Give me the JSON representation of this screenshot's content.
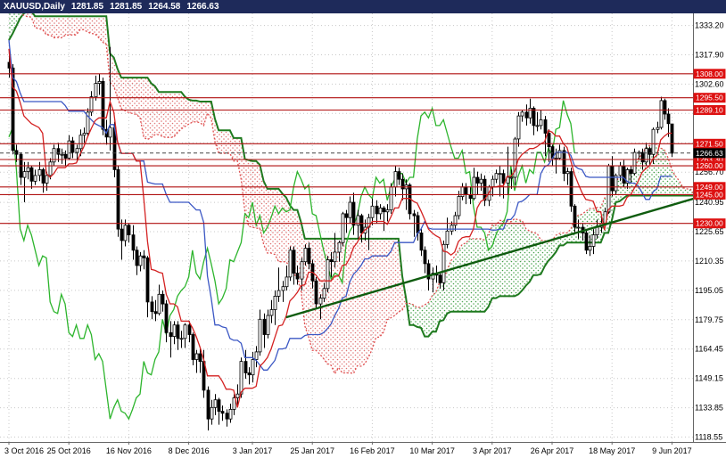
{
  "title_bar": {
    "symbol": "XAUUSD,Daily",
    "open": "1281.85",
    "high": "1281.85",
    "low": "1264.58",
    "close": "1266.63"
  },
  "chart_data": {
    "type": "candlestick",
    "title": "XAUUSD,Daily",
    "indicator": "Ichimoku Kinko Hyo",
    "last_price": {
      "value": 1266.63,
      "label": "1266.63"
    },
    "price_axis": {
      "scale_min": 1116.0,
      "scale_max": 1339.5,
      "grid_prices": [
        1333.2,
        1317.9,
        1302.6,
        1287.3,
        1272.0,
        1256.7,
        1240.95,
        1225.65,
        1210.35,
        1195.05,
        1179.75,
        1164.45,
        1149.15,
        1133.85,
        1118.55
      ],
      "tick_labels": [
        "1333.20",
        "1317.90",
        "1302.60",
        "1256.70",
        "1240.95",
        "1225.65",
        "1210.35",
        "1195.05",
        "1179.75",
        "1164.45",
        "1149.15",
        "1133.85",
        "1118.55"
      ]
    },
    "time_axis": {
      "ticks": [
        {
          "label": "3 Oct 2016",
          "index": 0
        },
        {
          "label": "25 Oct 2016",
          "index": 16
        },
        {
          "label": "16 Nov 2016",
          "index": 32
        },
        {
          "label": "8 Dec 2016",
          "index": 48
        },
        {
          "label": "3 Jan 2017",
          "index": 65
        },
        {
          "label": "25 Jan 2017",
          "index": 81
        },
        {
          "label": "16 Feb 2017",
          "index": 97
        },
        {
          "label": "10 Mar 2017",
          "index": 113
        },
        {
          "label": "3 Apr 2017",
          "index": 129
        },
        {
          "label": "26 Apr 2017",
          "index": 145
        },
        {
          "label": "18 May 2017",
          "index": 161
        },
        {
          "label": "9 Jun 2017",
          "index": 177
        }
      ]
    },
    "levels": [
      {
        "price": 1308.0,
        "label": "1308.00"
      },
      {
        "price": 1295.5,
        "label": "1295.50"
      },
      {
        "price": 1289.1,
        "label": "1289.10"
      },
      {
        "price": 1271.5,
        "label": "1271.50"
      },
      {
        "price": 1263.3,
        "label": "1263.30"
      },
      {
        "price": 1260.0,
        "label": "1260.00"
      },
      {
        "price": 1249.0,
        "label": "1249.00"
      },
      {
        "price": 1245.0,
        "label": "1245.00"
      },
      {
        "price": 1230.0,
        "label": "1230.00"
      }
    ],
    "trendline": {
      "from_index": 74,
      "from_price": 1181,
      "to_index": 183,
      "to_price": 1243
    },
    "ichimoku": {
      "tenkan_period": 9,
      "kijun_period": 26,
      "senkou_b_period": 52,
      "displacement": 26
    },
    "colors": {
      "background": "#ffffff",
      "title_bar_bg": "#1e2a5a",
      "grid": "#c8c8c8",
      "bull": "#ffffff",
      "bear": "#000000",
      "candle_outline": "#000000",
      "tenkan": "#d42222",
      "kijun": "#3b57c4",
      "chikou": "#2db52d",
      "senkou_a": "#e05050",
      "senkou_b": "#1f7a1f",
      "cloud_bull": "#44a048",
      "cloud_bear": "#e07070",
      "level_line": "#b01010",
      "level_badge": "#dd1111",
      "last_badge": "#000000",
      "axis_text": "#000000",
      "trendline": "#0f5c0f"
    },
    "pre_history_closes": [
      1278,
      1283,
      1288,
      1285,
      1292,
      1300,
      1308,
      1313,
      1318,
      1316,
      1322,
      1330,
      1336,
      1331,
      1326,
      1330,
      1334,
      1340,
      1346,
      1352,
      1358,
      1355,
      1348,
      1342,
      1336,
      1327,
      1332,
      1331,
      1323,
      1315,
      1319,
      1321,
      1326,
      1341,
      1337,
      1351,
      1353,
      1364,
      1357,
      1361,
      1366,
      1360,
      1357,
      1341,
      1336,
      1335,
      1340,
      1343,
      1348,
      1351,
      1346,
      1343,
      1339,
      1342,
      1340,
      1338,
      1324,
      1321,
      1324,
      1327,
      1323,
      1310,
      1314,
      1316,
      1311,
      1324,
      1327,
      1331,
      1336,
      1341,
      1337,
      1326,
      1322,
      1323,
      1327,
      1331,
      1326,
      1322,
      1318,
      1316
    ],
    "candles": [
      [
        1314,
        1319,
        1306,
        1311
      ],
      [
        1311,
        1313,
        1266,
        1268
      ],
      [
        1268,
        1271,
        1262,
        1266
      ],
      [
        1266,
        1267,
        1250,
        1254
      ],
      [
        1254,
        1262,
        1241,
        1257
      ],
      [
        1257,
        1262,
        1253,
        1259
      ],
      [
        1259,
        1260,
        1248,
        1252
      ],
      [
        1252,
        1258,
        1250,
        1255
      ],
      [
        1255,
        1262,
        1252,
        1258
      ],
      [
        1258,
        1259,
        1246,
        1251
      ],
      [
        1251,
        1257,
        1247,
        1255
      ],
      [
        1255,
        1264,
        1253,
        1262
      ],
      [
        1262,
        1271,
        1260,
        1269
      ],
      [
        1269,
        1272,
        1262,
        1266
      ],
      [
        1266,
        1269,
        1261,
        1266
      ],
      [
        1266,
        1268,
        1260,
        1264
      ],
      [
        1264,
        1276,
        1263,
        1273
      ],
      [
        1273,
        1275,
        1264,
        1267
      ],
      [
        1267,
        1271,
        1262,
        1269
      ],
      [
        1269,
        1279,
        1265,
        1276
      ],
      [
        1276,
        1280,
        1272,
        1277
      ],
      [
        1277,
        1290,
        1275,
        1288
      ],
      [
        1288,
        1299,
        1286,
        1296
      ],
      [
        1296,
        1307,
        1294,
        1303
      ],
      [
        1303,
        1308,
        1297,
        1304
      ],
      [
        1304,
        1306,
        1276,
        1279
      ],
      [
        1279,
        1284,
        1271,
        1275
      ],
      [
        1275,
        1322,
        1268,
        1280
      ],
      [
        1280,
        1283,
        1254,
        1258
      ],
      [
        1258,
        1260,
        1223,
        1227
      ],
      [
        1227,
        1232,
        1211,
        1221
      ],
      [
        1221,
        1232,
        1218,
        1229
      ],
      [
        1229,
        1230,
        1220,
        1224
      ],
      [
        1224,
        1229,
        1211,
        1216
      ],
      [
        1216,
        1218,
        1203,
        1208
      ],
      [
        1208,
        1215,
        1205,
        1213
      ],
      [
        1213,
        1216,
        1206,
        1212
      ],
      [
        1212,
        1213,
        1181,
        1189
      ],
      [
        1189,
        1192,
        1180,
        1184
      ],
      [
        1184,
        1190,
        1179,
        1183
      ],
      [
        1183,
        1198,
        1182,
        1193
      ],
      [
        1193,
        1195,
        1184,
        1188
      ],
      [
        1188,
        1190,
        1168,
        1173
      ],
      [
        1173,
        1179,
        1160,
        1171
      ],
      [
        1171,
        1179,
        1167,
        1177
      ],
      [
        1177,
        1179,
        1164,
        1170
      ],
      [
        1170,
        1174,
        1165,
        1170
      ],
      [
        1170,
        1178,
        1165,
        1177
      ],
      [
        1177,
        1179,
        1168,
        1172
      ],
      [
        1172,
        1173,
        1156,
        1159
      ],
      [
        1159,
        1164,
        1152,
        1162
      ],
      [
        1162,
        1165,
        1152,
        1158
      ],
      [
        1158,
        1164,
        1139,
        1143
      ],
      [
        1143,
        1145,
        1122,
        1128
      ],
      [
        1128,
        1138,
        1125,
        1134
      ],
      [
        1134,
        1141,
        1130,
        1138
      ],
      [
        1138,
        1139,
        1125,
        1132
      ],
      [
        1132,
        1135,
        1127,
        1131
      ],
      [
        1131,
        1133,
        1124,
        1128
      ],
      [
        1128,
        1136,
        1126,
        1133
      ],
      [
        1133,
        1141,
        1130,
        1139
      ],
      [
        1139,
        1146,
        1135,
        1141
      ],
      [
        1141,
        1160,
        1139,
        1158
      ],
      [
        1158,
        1164,
        1149,
        1152
      ],
      [
        1152,
        1155,
        1146,
        1151
      ],
      [
        1151,
        1163,
        1147,
        1159
      ],
      [
        1159,
        1166,
        1155,
        1163
      ],
      [
        1163,
        1185,
        1161,
        1180
      ],
      [
        1180,
        1183,
        1165,
        1172
      ],
      [
        1172,
        1185,
        1170,
        1182
      ],
      [
        1182,
        1190,
        1178,
        1185
      ],
      [
        1185,
        1195,
        1177,
        1192
      ],
      [
        1192,
        1207,
        1189,
        1195
      ],
      [
        1195,
        1200,
        1189,
        1197
      ],
      [
        1197,
        1208,
        1195,
        1202
      ],
      [
        1202,
        1218,
        1200,
        1216
      ],
      [
        1216,
        1218,
        1198,
        1204
      ],
      [
        1204,
        1208,
        1198,
        1201
      ],
      [
        1201,
        1212,
        1195,
        1210
      ],
      [
        1210,
        1219,
        1208,
        1217
      ],
      [
        1217,
        1220,
        1206,
        1209
      ],
      [
        1209,
        1211,
        1196,
        1200
      ],
      [
        1200,
        1202,
        1186,
        1188
      ],
      [
        1188,
        1193,
        1180,
        1191
      ],
      [
        1191,
        1199,
        1189,
        1196
      ],
      [
        1196,
        1213,
        1194,
        1211
      ],
      [
        1211,
        1215,
        1202,
        1210
      ],
      [
        1210,
        1225,
        1207,
        1215
      ],
      [
        1215,
        1221,
        1210,
        1220
      ],
      [
        1220,
        1236,
        1218,
        1235
      ],
      [
        1235,
        1237,
        1225,
        1233
      ],
      [
        1233,
        1244,
        1230,
        1241
      ],
      [
        1241,
        1246,
        1224,
        1229
      ],
      [
        1229,
        1237,
        1222,
        1234
      ],
      [
        1234,
        1235,
        1220,
        1225
      ],
      [
        1225,
        1232,
        1221,
        1228
      ],
      [
        1228,
        1235,
        1216,
        1233
      ],
      [
        1233,
        1243,
        1229,
        1239
      ],
      [
        1239,
        1242,
        1230,
        1235
      ],
      [
        1235,
        1240,
        1232,
        1238
      ],
      [
        1238,
        1239,
        1226,
        1236
      ],
      [
        1236,
        1240,
        1231,
        1237
      ],
      [
        1237,
        1251,
        1235,
        1249
      ],
      [
        1249,
        1260,
        1244,
        1257
      ],
      [
        1257,
        1259,
        1250,
        1253
      ],
      [
        1253,
        1256,
        1242,
        1248
      ],
      [
        1248,
        1253,
        1237,
        1250
      ],
      [
        1250,
        1251,
        1232,
        1235
      ],
      [
        1235,
        1237,
        1223,
        1234
      ],
      [
        1234,
        1236,
        1221,
        1225
      ],
      [
        1225,
        1227,
        1213,
        1216
      ],
      [
        1216,
        1218,
        1204,
        1209
      ],
      [
        1209,
        1211,
        1195,
        1201
      ],
      [
        1201,
        1207,
        1194,
        1204
      ],
      [
        1204,
        1208,
        1199,
        1203
      ],
      [
        1203,
        1205,
        1196,
        1199
      ],
      [
        1199,
        1221,
        1195,
        1219
      ],
      [
        1219,
        1233,
        1217,
        1226
      ],
      [
        1226,
        1231,
        1224,
        1229
      ],
      [
        1229,
        1236,
        1226,
        1234
      ],
      [
        1234,
        1247,
        1232,
        1244
      ],
      [
        1244,
        1251,
        1242,
        1249
      ],
      [
        1249,
        1251,
        1240,
        1245
      ],
      [
        1245,
        1249,
        1240,
        1243
      ],
      [
        1243,
        1259,
        1242,
        1254
      ],
      [
        1254,
        1257,
        1245,
        1251
      ],
      [
        1251,
        1256,
        1247,
        1253
      ],
      [
        1253,
        1255,
        1239,
        1242
      ],
      [
        1242,
        1250,
        1239,
        1249
      ],
      [
        1249,
        1255,
        1244,
        1253
      ],
      [
        1253,
        1258,
        1251,
        1256
      ],
      [
        1256,
        1260,
        1244,
        1256
      ],
      [
        1256,
        1258,
        1243,
        1251
      ],
      [
        1251,
        1270,
        1245,
        1254
      ],
      [
        1254,
        1258,
        1248,
        1254
      ],
      [
        1254,
        1275,
        1250,
        1274
      ],
      [
        1274,
        1288,
        1270,
        1286
      ],
      [
        1286,
        1289,
        1283,
        1288
      ],
      [
        1288,
        1292,
        1281,
        1285
      ],
      [
        1285,
        1295,
        1282,
        1290
      ],
      [
        1290,
        1291,
        1276,
        1281
      ],
      [
        1281,
        1288,
        1278,
        1281
      ],
      [
        1281,
        1289,
        1279,
        1284
      ],
      [
        1284,
        1286,
        1265,
        1277
      ],
      [
        1277,
        1279,
        1262,
        1270
      ],
      [
        1270,
        1271,
        1260,
        1264
      ],
      [
        1264,
        1269,
        1256,
        1264
      ],
      [
        1264,
        1271,
        1263,
        1268
      ],
      [
        1268,
        1270,
        1252,
        1256
      ],
      [
        1256,
        1259,
        1250,
        1257
      ],
      [
        1257,
        1259,
        1236,
        1239
      ],
      [
        1239,
        1240,
        1225,
        1228
      ],
      [
        1228,
        1232,
        1222,
        1228
      ],
      [
        1228,
        1230,
        1221,
        1225
      ],
      [
        1225,
        1227,
        1214,
        1216
      ],
      [
        1216,
        1224,
        1213,
        1218
      ],
      [
        1218,
        1227,
        1214,
        1224
      ],
      [
        1224,
        1232,
        1222,
        1228
      ],
      [
        1228,
        1234,
        1225,
        1230
      ],
      [
        1230,
        1238,
        1228,
        1236
      ],
      [
        1236,
        1261,
        1235,
        1260
      ],
      [
        1260,
        1265,
        1244,
        1247
      ],
      [
        1247,
        1256,
        1245,
        1255
      ],
      [
        1255,
        1262,
        1252,
        1260
      ],
      [
        1260,
        1263,
        1249,
        1251
      ],
      [
        1251,
        1259,
        1248,
        1258
      ],
      [
        1258,
        1260,
        1251,
        1256
      ],
      [
        1256,
        1269,
        1255,
        1267
      ],
      [
        1267,
        1268,
        1263,
        1267
      ],
      [
        1267,
        1269,
        1258,
        1262
      ],
      [
        1262,
        1272,
        1260,
        1269
      ],
      [
        1269,
        1270,
        1260,
        1266
      ],
      [
        1266,
        1280,
        1261,
        1279
      ],
      [
        1279,
        1283,
        1277,
        1280
      ],
      [
        1280,
        1296,
        1279,
        1294
      ],
      [
        1294,
        1295,
        1284,
        1287
      ],
      [
        1287,
        1290,
        1275,
        1282
      ],
      [
        1281.85,
        1281.85,
        1264.58,
        1266.63
      ]
    ]
  }
}
